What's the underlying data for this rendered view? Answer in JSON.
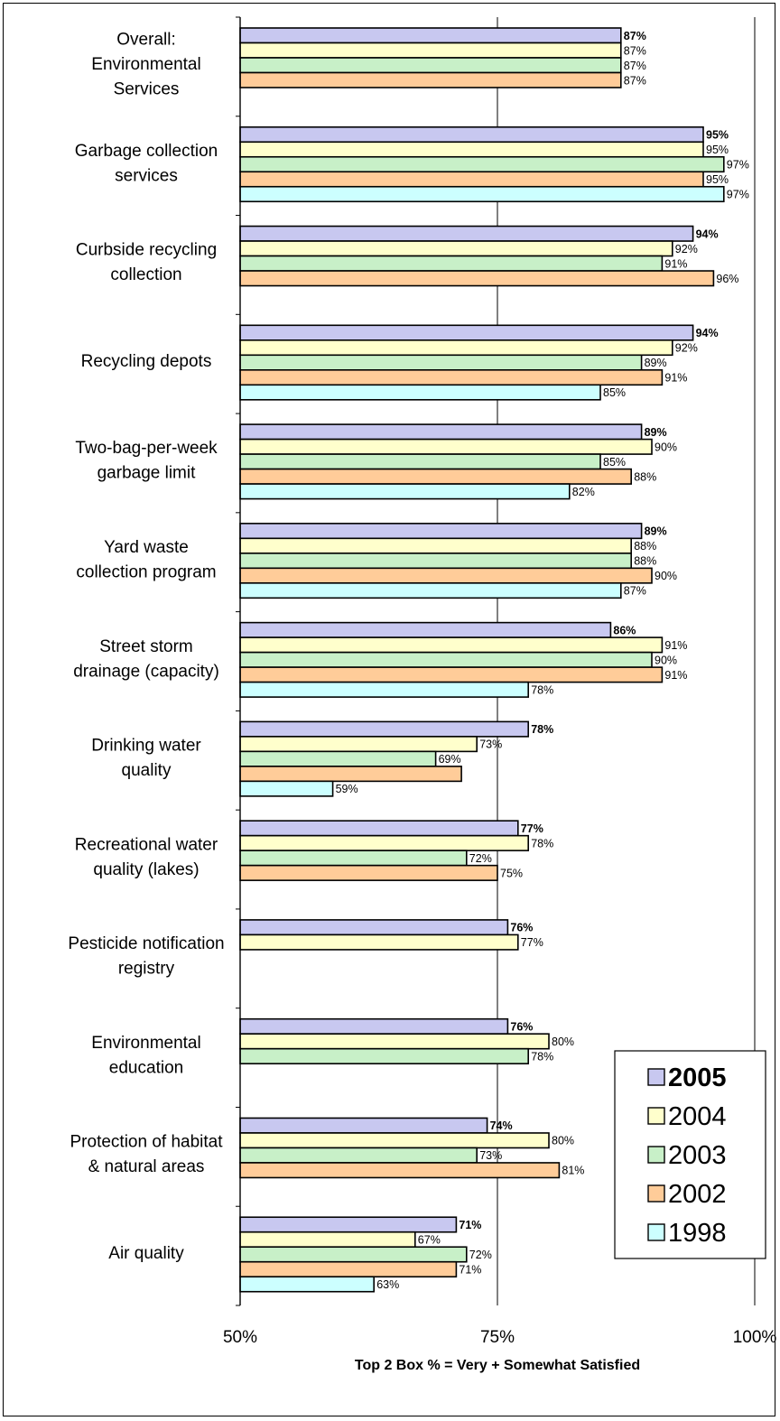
{
  "chart_data": {
    "type": "bar",
    "orientation": "horizontal",
    "xlabel": "Top 2 Box % = Very + Somewhat Satisfied",
    "xlim": [
      50,
      100
    ],
    "xticks": [
      50,
      75,
      100
    ],
    "xtick_labels": [
      "50%",
      "75%",
      "100%"
    ],
    "grid": "vertical lines at 75% and 100%",
    "legend_position": "bottom-right",
    "series": [
      {
        "name": "2005",
        "color": "#c8c8f0",
        "bold": true
      },
      {
        "name": "2004",
        "color": "#ffffcc",
        "bold": false
      },
      {
        "name": "2003",
        "color": "#c8f0c8",
        "bold": false
      },
      {
        "name": "2002",
        "color": "#ffcc99",
        "bold": false
      },
      {
        "name": "1998",
        "color": "#ccffff",
        "bold": false
      }
    ],
    "categories": [
      {
        "label": [
          "Overall:",
          "Environmental",
          "Services"
        ],
        "values": [
          87,
          87,
          87,
          87,
          null
        ],
        "labels": [
          "87%",
          "87%",
          "87%",
          "87%",
          null
        ]
      },
      {
        "label": [
          "Garbage collection",
          "services"
        ],
        "values": [
          95,
          95,
          97,
          95,
          97
        ],
        "labels": [
          "95%",
          "95%",
          "97%",
          "95%",
          "97%"
        ]
      },
      {
        "label": [
          "Curbside recycling",
          "collection"
        ],
        "values": [
          94,
          92,
          91,
          96,
          null
        ],
        "labels": [
          "94%",
          "92%",
          "91%",
          "96%",
          null
        ]
      },
      {
        "label": [
          "Recycling depots"
        ],
        "values": [
          94,
          92,
          89,
          91,
          85
        ],
        "labels": [
          "94%",
          "92%",
          "89%",
          "91%",
          "85%"
        ]
      },
      {
        "label": [
          "Two-bag-per-week",
          "garbage limit"
        ],
        "values": [
          89,
          90,
          85,
          88,
          82
        ],
        "labels": [
          "89%",
          "90%",
          "85%",
          "88%",
          "82%"
        ]
      },
      {
        "label": [
          "Yard waste",
          "collection program"
        ],
        "values": [
          89,
          88,
          88,
          90,
          87
        ],
        "labels": [
          "89%",
          "88%",
          "88%",
          "90%",
          "87%"
        ]
      },
      {
        "label": [
          "Street storm",
          "drainage (capacity)"
        ],
        "values": [
          86,
          91,
          90,
          91,
          78
        ],
        "labels": [
          "86%",
          "91%",
          "90%",
          "91%",
          "78%"
        ]
      },
      {
        "label": [
          "Drinking water",
          "quality"
        ],
        "values": [
          78,
          73,
          69,
          71.5,
          59
        ],
        "labels": [
          "78%",
          "73%",
          "69%",
          null,
          "59%"
        ]
      },
      {
        "label": [
          "Recreational water",
          "quality (lakes)"
        ],
        "values": [
          77,
          78,
          72,
          75,
          null
        ],
        "labels": [
          "77%",
          "78%",
          "72%",
          "75%",
          null
        ]
      },
      {
        "label": [
          "Pesticide notification",
          "registry"
        ],
        "values": [
          76,
          77,
          null,
          null,
          null
        ],
        "labels": [
          "76%",
          "77%",
          null,
          null,
          null
        ]
      },
      {
        "label": [
          "Environmental",
          "education"
        ],
        "values": [
          76,
          80,
          78,
          null,
          null
        ],
        "labels": [
          "76%",
          "80%",
          "78%",
          null,
          null
        ]
      },
      {
        "label": [
          "Protection of habitat",
          "& natural areas"
        ],
        "values": [
          74,
          80,
          73,
          81,
          null
        ],
        "labels": [
          "74%",
          "80%",
          "73%",
          "81%",
          null
        ]
      },
      {
        "label": [
          "Air quality"
        ],
        "values": [
          71,
          67,
          72,
          71,
          63
        ],
        "labels": [
          "71%",
          "67%",
          "72%",
          "71%",
          "63%"
        ]
      }
    ]
  }
}
